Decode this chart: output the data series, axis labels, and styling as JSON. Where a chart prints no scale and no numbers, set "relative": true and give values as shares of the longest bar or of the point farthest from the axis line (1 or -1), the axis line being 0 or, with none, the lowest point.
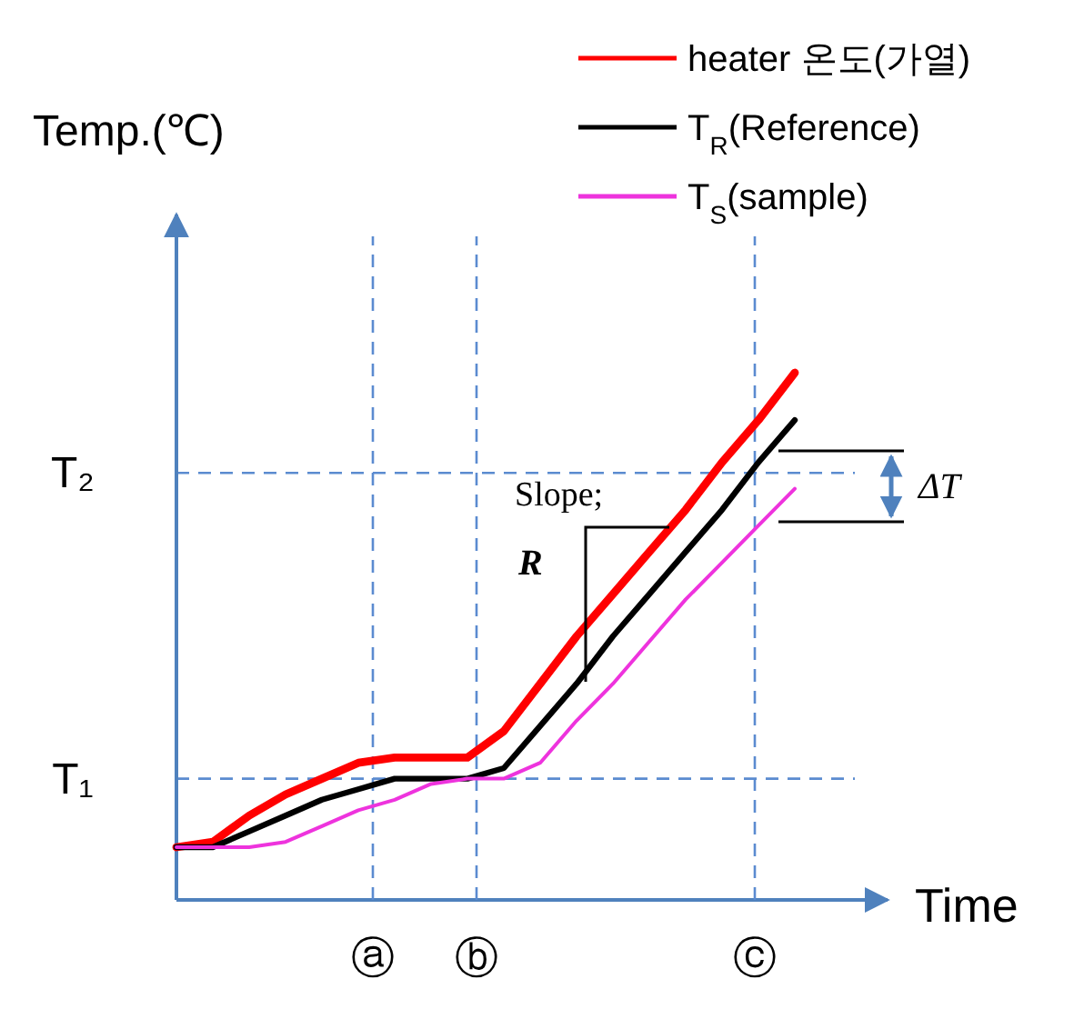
{
  "chart_data": {
    "type": "line",
    "relative": true,
    "xlabel": "Time",
    "ylabel": "Temp.(℃)",
    "legend": "top right",
    "categories": [
      null,
      null,
      null,
      null,
      null,
      null,
      null,
      null,
      null,
      null,
      null,
      null,
      null,
      null,
      null,
      null,
      null,
      null
    ],
    "series": [
      {
        "name": "heater 온도(가열)",
        "color": "#ff0000",
        "values": [
          0.1,
          0.11,
          0.16,
          0.2,
          0.23,
          0.26,
          0.27,
          0.27,
          0.27,
          0.32,
          0.41,
          0.5,
          0.58,
          0.66,
          0.74,
          0.83,
          0.91,
          1.0
        ]
      },
      {
        "name": "T$_{R}$(Reference)",
        "color": "#000000",
        "values": [
          0.1,
          0.1,
          0.13,
          0.16,
          0.19,
          0.21,
          0.23,
          0.23,
          0.23,
          0.25,
          0.33,
          0.41,
          0.5,
          0.58,
          0.66,
          0.74,
          0.83,
          0.91
        ]
      },
      {
        "name": "T$_{S}$(sample)",
        "color": "#ee33dd",
        "values": [
          0.1,
          0.1,
          0.1,
          0.11,
          0.14,
          0.17,
          0.19,
          0.22,
          0.23,
          0.23,
          0.26,
          0.34,
          0.41,
          0.49,
          0.57,
          0.64,
          0.71,
          0.78
        ]
      }
    ],
    "ref_lines": [
      {
        "axis": "y",
        "value": 0.23,
        "label": "T₁",
        "color": "#5b8bd0",
        "line_style": "dashed"
      },
      {
        "axis": "y",
        "value": 0.81,
        "label": "T₂",
        "color": "#5b8bd0",
        "line_style": "dashed"
      }
    ],
    "annotations": [
      "Slope;",
      "R",
      "ΔT",
      "ⓐ",
      "ⓑ",
      "ⓒ"
    ]
  }
}
